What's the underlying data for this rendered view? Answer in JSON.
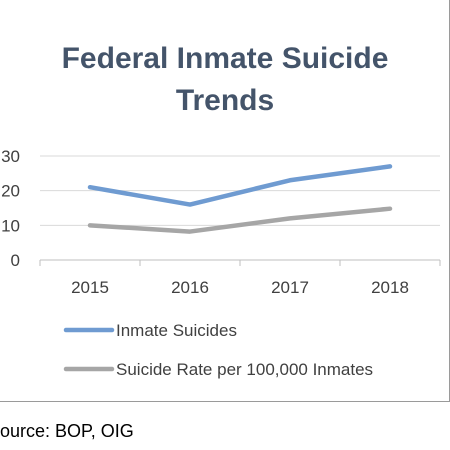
{
  "chart_data": {
    "type": "line",
    "title": "Federal Inmate Suicide Trends",
    "title_lines": [
      "Federal Inmate Suicide",
      "Trends"
    ],
    "categories": [
      "2015",
      "2016",
      "2017",
      "2018"
    ],
    "series": [
      {
        "name": "Inmate Suicides",
        "values": [
          21,
          16,
          23,
          27
        ],
        "color": "#6f9bd1"
      },
      {
        "name": "Suicide Rate per 100,000 Inmates",
        "values": [
          10,
          8.2,
          12,
          14.8
        ],
        "color": "#a6a6a6"
      }
    ],
    "ylim": [
      0,
      30
    ],
    "yticks": [
      0,
      10,
      20,
      30
    ],
    "ytick_labels": [
      "0",
      "10",
      "20",
      "30"
    ],
    "grid": true,
    "legend_position": "bottom"
  },
  "source": "Source:  BOP, OIG"
}
